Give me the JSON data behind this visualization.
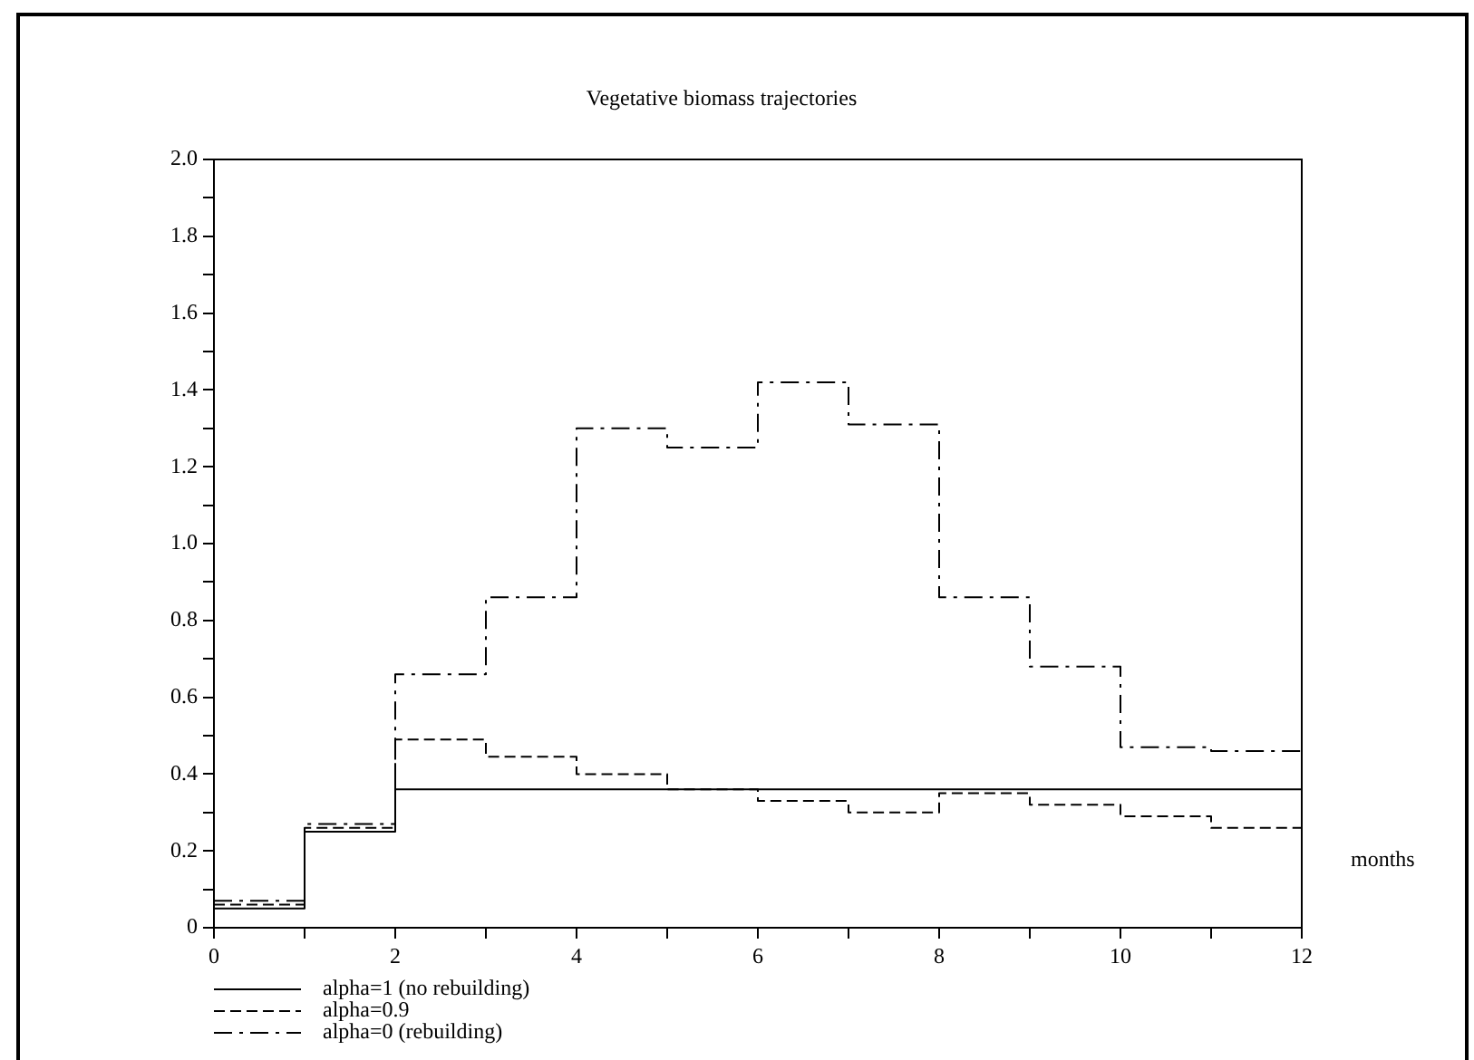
{
  "chart_data": {
    "type": "step",
    "title": "Vegetative biomass trajectories",
    "xlabel": "months",
    "x": [
      0,
      1,
      2,
      3,
      4,
      5,
      6,
      7,
      8,
      9,
      10,
      11,
      12
    ],
    "series": [
      {
        "name": "alpha=1 (no rebuilding)",
        "color": "#000000",
        "line_style": "solid",
        "values": [
          0.05,
          0.25,
          0.36,
          0.36,
          0.36,
          0.36,
          0.36,
          0.36,
          0.36,
          0.36,
          0.36,
          0.36,
          0.36
        ]
      },
      {
        "name": "alpha=0.9",
        "color": "#000000",
        "line_style": "dashed",
        "values": [
          0.06,
          0.26,
          0.49,
          0.445,
          0.4,
          0.36,
          0.33,
          0.3,
          0.35,
          0.32,
          0.29,
          0.26,
          0.26
        ]
      },
      {
        "name": "alpha=0 (rebuilding)",
        "color": "#000000",
        "line_style": "dashdot",
        "values": [
          0.07,
          0.27,
          0.66,
          0.86,
          1.3,
          1.25,
          1.42,
          1.31,
          0.86,
          0.68,
          0.47,
          0.46,
          0.46
        ]
      }
    ],
    "xlim": [
      0,
      12
    ],
    "xticks": [
      0,
      {
        "value": 1,
        "label": null
      },
      2,
      {
        "value": 3,
        "label": null
      },
      4,
      {
        "value": 5,
        "label": null
      },
      6,
      {
        "value": 7,
        "label": null
      },
      8,
      {
        "value": 9,
        "label": null
      },
      10,
      {
        "value": 11,
        "label": null
      },
      12
    ],
    "ylim": [
      0,
      2
    ],
    "yticks": [
      0,
      {
        "value": 0.1,
        "label": null
      },
      0.2,
      {
        "value": 0.3,
        "label": null
      },
      0.4,
      {
        "value": 0.5,
        "label": null
      },
      0.6,
      {
        "value": 0.7,
        "label": null
      },
      0.8,
      {
        "value": 0.9,
        "label": null
      },
      {
        "value": 1,
        "label": "1.0"
      },
      {
        "value": 1.1,
        "label": null
      },
      1.2,
      {
        "value": 1.3,
        "label": null
      },
      1.4,
      {
        "value": 1.5,
        "label": null
      },
      1.6,
      {
        "value": 1.7,
        "label": null
      },
      1.8,
      {
        "value": 1.9,
        "label": null
      },
      {
        "value": 2,
        "label": "2.0"
      }
    ],
    "grid": false,
    "legend": "bottom left",
    "marker": "none"
  }
}
